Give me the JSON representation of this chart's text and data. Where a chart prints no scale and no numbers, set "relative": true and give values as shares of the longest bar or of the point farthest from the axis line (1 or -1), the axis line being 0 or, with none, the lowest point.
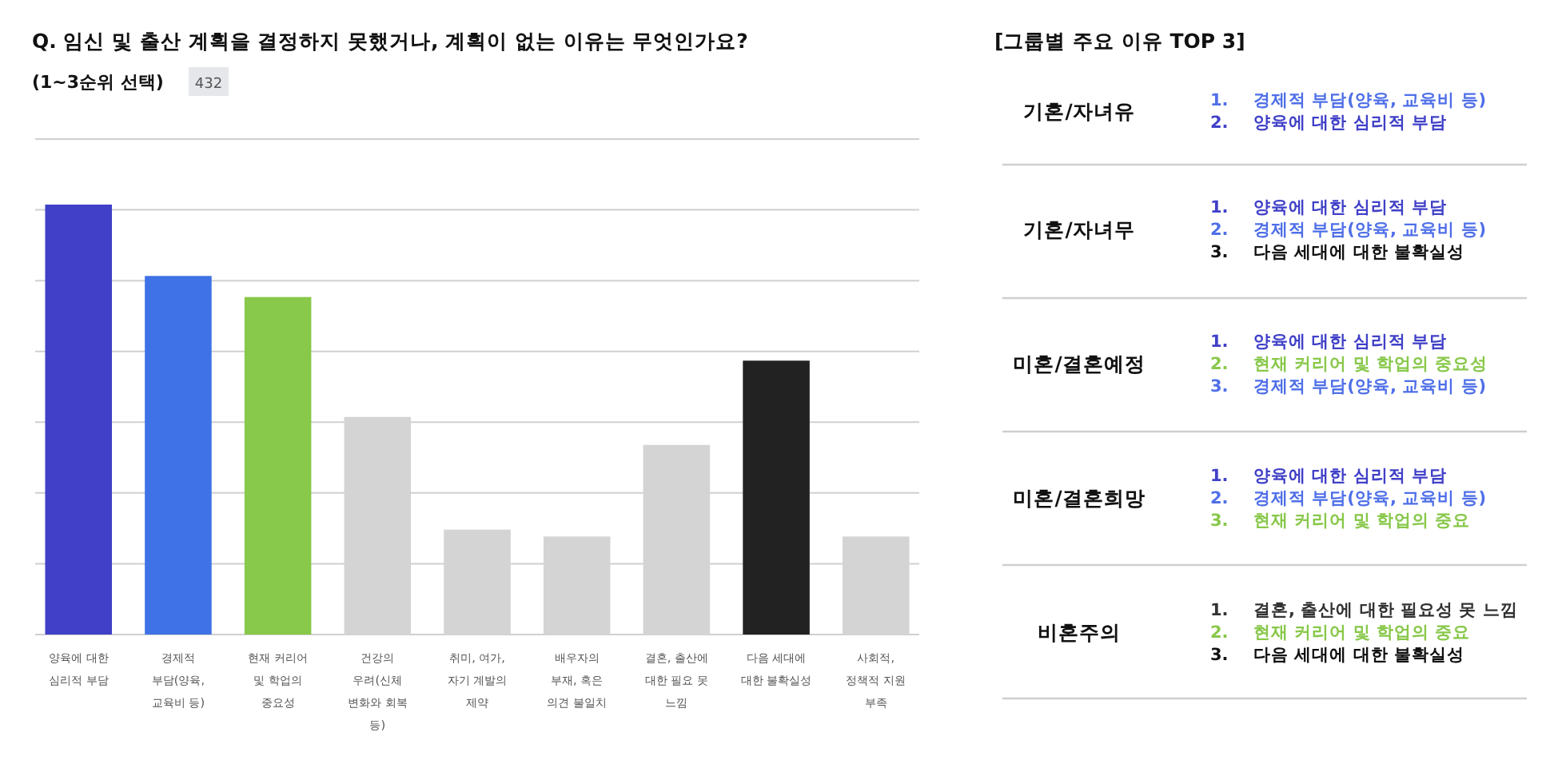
{
  "chart_data": [
    {
      "type": "bar",
      "title": "Q. 임신 및 출산 계획을 결정하지 못했거나, 계획이 없는 이유는 무엇인가요?",
      "subtitle": "(1~3순위 선택)",
      "annotations": [
        "432"
      ],
      "relative": true,
      "grid": true,
      "categories": [
        "양육에 대한 심리적 부담",
        "경제적 부담(양육, 교육비 등)",
        "현재 커리어 및 학업의 중요성",
        "건강의 우려(신체 변화와 회복 등)",
        "취미, 여가, 자기 계발의 제약",
        "배우자의 부재, 혹은 의견 불일치",
        "결혼, 출산에 대한 필요 못 느낌",
        "다음 세대에 대한 불확실성",
        "사회적, 정책적 지원 부족"
      ],
      "values": [
        1,
        0.834,
        0.785,
        0.506,
        0.244,
        0.228,
        0.441,
        0.637,
        0.228
      ],
      "colors": [
        "#4040c8",
        "#3f72e6",
        "#88c84a",
        "#d4d4d4",
        "#d4d4d4",
        "#d4d4d4",
        "#d4d4d4",
        "#222222",
        "#d4d4d4"
      ]
    },
    {
      "type": "other",
      "title": "[그룹별 주요 이유 TOP 3]",
      "categories": [
        "기혼/자녀유",
        "기혼/자녀무",
        "미혼/결혼예정",
        "미혼/결혼희망",
        "비혼주의"
      ],
      "annotations": [
        [
          "1.",
          "경제적 부담(양육, 교육비 등)",
          "2.",
          "양육에 대한 심리적 부담"
        ],
        [
          "1.",
          "양육에 대한 심리적 부담",
          "2.",
          "경제적 부담(양육, 교육비 등)",
          "3.",
          "다음 세대에 대한 불확실성"
        ],
        [
          "1.",
          "양육에 대한 심리적 부담",
          "2.",
          "현재 커리어 및 학업의 중요성",
          "3.",
          "경제적 부담(양육, 교육비 등)"
        ],
        [
          "1.",
          "양육에 대한 심리적 부담",
          "2.",
          "경제적 부담(양육, 교육비 등)",
          "3.",
          "현재 커리어 및 학업의 중요"
        ],
        [
          "1.",
          "결혼, 출산에 대한 필요성 못 느낌",
          "2.",
          "현재 커리어 및 학업의 중요",
          "3.",
          "다음 세대에 대한 불확실성"
        ]
      ],
      "colors": [
        [
          "#4f6fe8",
          "#4040c8"
        ],
        [
          "#4040c8",
          "#4f6fe8",
          "#111111"
        ],
        [
          "#4040c8",
          "#88c84a",
          "#4f6fe8"
        ],
        [
          "#4040c8",
          "#4f6fe8",
          "#88c84a"
        ],
        [
          "#333333",
          "#88c84a",
          "#111111"
        ]
      ]
    }
  ]
}
